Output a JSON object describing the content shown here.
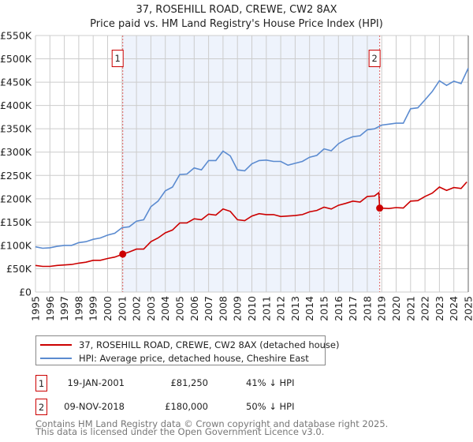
{
  "title": "37, ROSEHILL ROAD, CREWE, CW2 8AX",
  "subtitle": "Price paid vs. HM Land Registry's House Price Index (HPI)",
  "chart_data": {
    "type": "line",
    "title": "37, ROSEHILL ROAD, CREWE, CW2 8AX",
    "subtitle": "Price paid vs. HM Land Registry's House Price Index (HPI)",
    "xlim": [
      1995,
      2025
    ],
    "ylim": [
      0,
      550000
    ],
    "x_ticks": [
      "1995",
      "1996",
      "1997",
      "1998",
      "1999",
      "2000",
      "2001",
      "2002",
      "2003",
      "2004",
      "2005",
      "2006",
      "2007",
      "2008",
      "2009",
      "2010",
      "2011",
      "2012",
      "2013",
      "2014",
      "2015",
      "2016",
      "2017",
      "2018",
      "2019",
      "2020",
      "2021",
      "2022",
      "2023",
      "2024",
      "2025"
    ],
    "y_ticks": [
      {
        "v": 0,
        "l": "£0"
      },
      {
        "v": 50000,
        "l": "£50K"
      },
      {
        "v": 100000,
        "l": "£100K"
      },
      {
        "v": 150000,
        "l": "£150K"
      },
      {
        "v": 200000,
        "l": "£200K"
      },
      {
        "v": 250000,
        "l": "£250K"
      },
      {
        "v": 300000,
        "l": "£300K"
      },
      {
        "v": 350000,
        "l": "£350K"
      },
      {
        "v": 400000,
        "l": "£400K"
      },
      {
        "v": 450000,
        "l": "£450K"
      },
      {
        "v": 500000,
        "l": "£500K"
      },
      {
        "v": 550000,
        "l": "£550K"
      }
    ],
    "grid": true,
    "shaded_range": [
      2001.05,
      2018.86
    ],
    "series": [
      {
        "name": "37, ROSEHILL ROAD, CREWE, CW2 8AX (detached house)",
        "color": "#cc0000",
        "x": [
          1995,
          1995.5,
          1996,
          1996.5,
          1997,
          1997.5,
          1998,
          1998.5,
          1999,
          1999.5,
          2000,
          2000.5,
          2001.05,
          2001.5,
          2002,
          2002.5,
          2003,
          2003.5,
          2004,
          2004.5,
          2005,
          2005.5,
          2006,
          2006.5,
          2007,
          2007.5,
          2008,
          2008.5,
          2009,
          2009.5,
          2010,
          2010.5,
          2011,
          2011.5,
          2012,
          2012.5,
          2013,
          2013.5,
          2014,
          2014.5,
          2015,
          2015.5,
          2016,
          2016.5,
          2017,
          2017.5,
          2018,
          2018.5,
          2018.8,
          2018.86,
          2019.5,
          2020,
          2020.5,
          2021,
          2021.5,
          2022,
          2022.5,
          2023,
          2023.5,
          2024,
          2024.5,
          2024.9
        ],
        "y": [
          57000,
          55000,
          55000,
          57000,
          58000,
          59000,
          62000,
          64000,
          68000,
          68000,
          72000,
          75000,
          81250,
          86000,
          92000,
          92000,
          108000,
          116000,
          127000,
          133000,
          148000,
          148000,
          157000,
          155000,
          167000,
          165000,
          178000,
          173000,
          155000,
          153000,
          163000,
          168000,
          166000,
          166000,
          162000,
          163000,
          164000,
          166000,
          172000,
          175000,
          182000,
          178000,
          186000,
          190000,
          195000,
          193000,
          205000,
          206000,
          213000,
          180000,
          179000,
          181000,
          180000,
          195000,
          196000,
          205000,
          212000,
          225000,
          218000,
          224000,
          222000,
          236000
        ]
      },
      {
        "name": "HPI: Average price, detached house, Cheshire East",
        "color": "#5b8bd0",
        "x": [
          1995,
          1995.5,
          1996,
          1996.5,
          1997,
          1997.5,
          1998,
          1998.5,
          1999,
          1999.5,
          2000,
          2000.5,
          2001,
          2001.5,
          2002,
          2002.5,
          2003,
          2003.5,
          2004,
          2004.5,
          2005,
          2005.5,
          2006,
          2006.5,
          2007,
          2007.5,
          2008,
          2008.5,
          2009,
          2009.5,
          2010,
          2010.5,
          2011,
          2011.5,
          2012,
          2012.5,
          2013,
          2013.5,
          2014,
          2014.5,
          2015,
          2015.5,
          2016,
          2016.5,
          2017,
          2017.5,
          2018,
          2018.5,
          2019,
          2019.5,
          2020,
          2020.5,
          2021,
          2021.5,
          2022,
          2022.5,
          2023,
          2023.5,
          2024,
          2024.5,
          2025
        ],
        "y": [
          97000,
          94000,
          95000,
          98000,
          100000,
          100000,
          106000,
          108000,
          113000,
          116000,
          122000,
          126000,
          138000,
          140000,
          152000,
          155000,
          183000,
          195000,
          217000,
          225000,
          252000,
          253000,
          266000,
          262000,
          282000,
          282000,
          302000,
          292000,
          262000,
          260000,
          275000,
          282000,
          283000,
          280000,
          280000,
          272000,
          276000,
          280000,
          289000,
          293000,
          307000,
          303000,
          318000,
          327000,
          333000,
          335000,
          348000,
          350000,
          358000,
          360000,
          362000,
          362000,
          393000,
          395000,
          412000,
          430000,
          453000,
          443000,
          452000,
          447000,
          480000
        ]
      }
    ],
    "markers": [
      {
        "label": "1",
        "x": 2001.05,
        "y": 81250
      },
      {
        "label": "2",
        "x": 2018.86,
        "y": 180000
      }
    ]
  },
  "legend": [
    {
      "label": "37, ROSEHILL ROAD, CREWE, CW2 8AX (detached house)",
      "color": "#cc0000"
    },
    {
      "label": "HPI: Average price, detached house, Cheshire East",
      "color": "#5b8bd0"
    }
  ],
  "transactions": [
    {
      "num": "1",
      "date": "19-JAN-2001",
      "price": "£81,250",
      "hpi": "41% ↓ HPI"
    },
    {
      "num": "2",
      "date": "09-NOV-2018",
      "price": "£180,000",
      "hpi": "50% ↓ HPI"
    }
  ],
  "footer": [
    "Contains HM Land Registry data © Crown copyright and database right 2025.",
    "This data is licensed under the Open Government Licence v3.0."
  ]
}
